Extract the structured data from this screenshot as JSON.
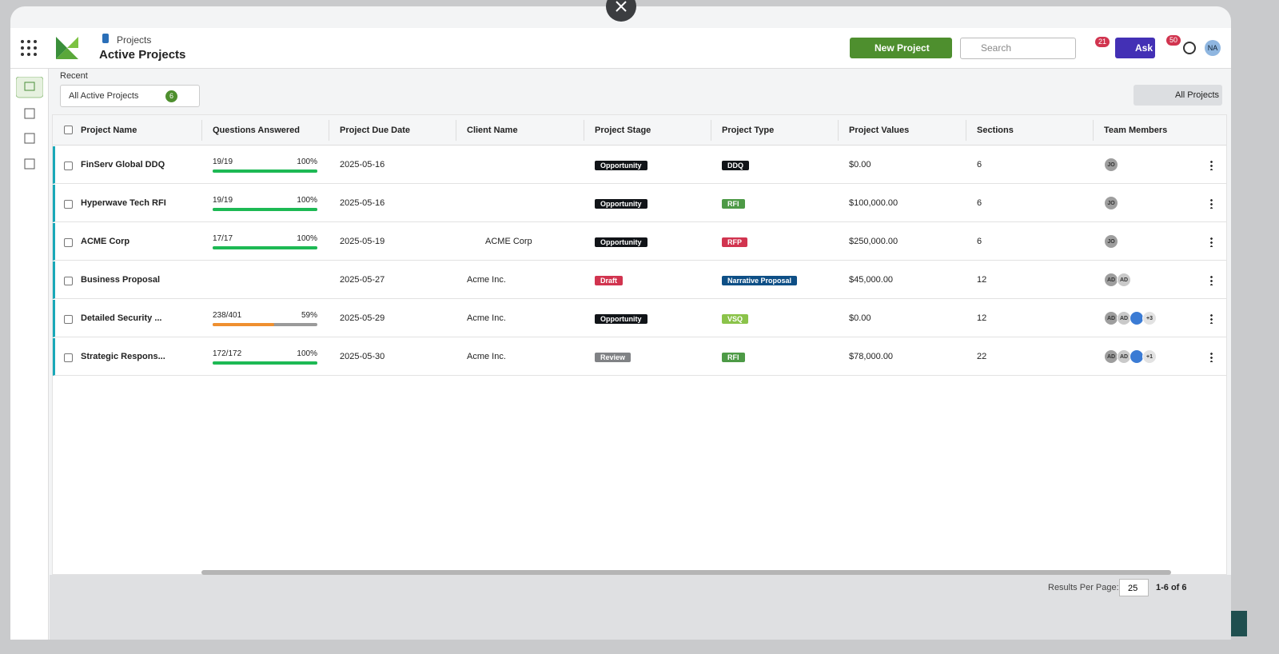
{
  "header": {
    "breadcrumb": "Projects",
    "title": "Active Projects",
    "new_project": "New Project",
    "search": "Search",
    "ask": "Ask",
    "messages_badge": 21,
    "notifications_badge": 50,
    "user_initials": "NA"
  },
  "toolbar": {
    "recent": "Recent",
    "view": "All Active Projects",
    "view_count": 6,
    "scope": "All Projects"
  },
  "table": {
    "columns": [
      "Project Name",
      "Questions Answered",
      "Project Due Date",
      "Client Name",
      "Project Stage",
      "Project Type",
      "Project Values",
      "Sections",
      "Team Members"
    ],
    "rows": [
      {
        "name": "FinServ Global DDQ",
        "answered": "19/19",
        "progress": {
          "value": 100,
          "label": "100%"
        },
        "progress_color": "#1db954",
        "due": "2025-05-16",
        "stage": "Opportunity",
        "stage_color": "#111418",
        "type": "DDQ",
        "type_color": "#111418",
        "value": "$0.00",
        "sections": 6,
        "members": [
          "JO"
        ]
      },
      {
        "name": "Hyperwave Tech RFI",
        "answered": "19/19",
        "progress": {
          "value": 100,
          "label": "100%"
        },
        "progress_color": "#1db954",
        "due": "2025-05-16",
        "stage": "Opportunity",
        "stage_color": "#111418",
        "type": "RFI",
        "type_color": "#4d9a46",
        "value": "$100,000.00",
        "sections": 6,
        "members": [
          "JO"
        ]
      },
      {
        "name": "ACME Corp",
        "answered": "17/17",
        "progress": {
          "value": 100,
          "label": "100%"
        },
        "progress_color": "#1db954",
        "due": "2025-05-19",
        "client": "ACME Corp",
        "stage": "Opportunity",
        "stage_color": "#111418",
        "type": "RFP",
        "type_color": "#d1344f",
        "value": "$250,000.00",
        "sections": 6,
        "members": [
          "JO"
        ]
      },
      {
        "name": "Business Proposal",
        "due": "2025-05-27",
        "client": "Acme Inc.",
        "stage": "Draft",
        "stage_color": "#d1344f",
        "type": "Narrative Proposal",
        "type_color": "#0e4f86",
        "value": "$45,000.00",
        "sections": 12,
        "members": [
          "AD",
          "AD"
        ]
      },
      {
        "name": "Detailed Security ...",
        "answered": "238/401",
        "progress": {
          "value": 59,
          "label": "59%"
        },
        "progress_color": "#ef8f2f",
        "due": "2025-05-29",
        "client": "Acme Inc.",
        "stage": "Opportunity",
        "stage_color": "#111418",
        "type": "VSQ",
        "type_color": "#8bc34a",
        "value": "$0.00",
        "sections": 12,
        "members": [
          "AD",
          "AD"
        ],
        "photo_avatars": 1,
        "more": "+3"
      },
      {
        "name": "Strategic Respons...",
        "answered": "172/172",
        "progress": {
          "value": 100,
          "label": "100%"
        },
        "progress_color": "#1db954",
        "due": "2025-05-30",
        "client": "Acme Inc.",
        "stage": "Review",
        "stage_color": "#808285",
        "type": "RFI",
        "type_color": "#4d9a46",
        "value": "$78,000.00",
        "sections": 22,
        "members": [
          "AD",
          "AD"
        ],
        "photo_avatars": 1,
        "more": "+1"
      }
    ]
  },
  "footer": {
    "per_page_label": "Results Per Page:",
    "per_page": 25,
    "range": "1-6 of 6"
  }
}
